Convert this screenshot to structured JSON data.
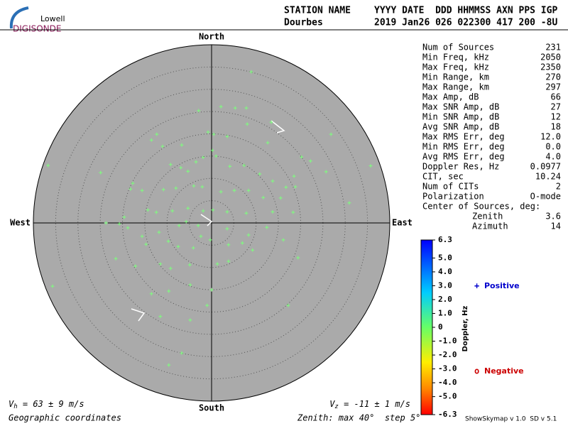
{
  "header": {
    "logo_top": "Lowell",
    "logo_bottom": "DIGISONDE",
    "line1": [
      "STATION NAME",
      "YYYY DATE  DDD HHMMSS AXN PPS IGP"
    ],
    "line2": [
      "Dourbes",
      "2019 Jan26 026 022300 417 200 -8U"
    ]
  },
  "stats": {
    "rows": [
      [
        "Num of Sources",
        "231"
      ],
      [
        "Min Freq, kHz",
        "2050"
      ],
      [
        "Max Freq, kHz",
        "2350"
      ],
      [
        "Min Range, km",
        "270"
      ],
      [
        "Max Range, km",
        "297"
      ],
      [
        "Max Amp, dB",
        "66"
      ],
      [
        "Max SNR Amp, dB",
        "27"
      ],
      [
        "Min SNR Amp, dB",
        "12"
      ],
      [
        "Avg SNR Amp, dB",
        "18"
      ],
      [
        "Max RMS Err, deg",
        "12.0"
      ],
      [
        "Min RMS Err, deg",
        "0.0"
      ],
      [
        "Avg RMS Err, deg",
        "4.0"
      ],
      [
        "Doppler Res, Hz",
        "0.0977"
      ],
      [
        "CIT, sec",
        "10.24"
      ],
      [
        "Num of CITs",
        "2"
      ],
      [
        "Polarization",
        "O-mode"
      ]
    ],
    "center_title": "Center of Sources, deg:",
    "center_rows": [
      [
        "Zenith",
        "3.6"
      ],
      [
        "Azimuth",
        "14"
      ]
    ]
  },
  "chart_data": {
    "type": "scatter",
    "directions": {
      "north": "North",
      "south": "South",
      "east": "East",
      "west": "West"
    },
    "xlim": [
      -40,
      40
    ],
    "ylim": [
      -40,
      40
    ],
    "rings": [
      5,
      10,
      15,
      20,
      25,
      30,
      35
    ],
    "series": [
      {
        "name": "Sources",
        "color": "#7dff7d",
        "x": [
          8.9,
          2.1,
          5.3,
          7.8,
          -2.9,
          13.4,
          26.8,
          0.5,
          3.5,
          8.0,
          -12.3,
          -13.5,
          -0.8,
          -11.0,
          -6.7,
          12.6,
          20.2,
          22.2,
          35.7,
          -36.7,
          -24.9,
          25.7,
          0.2,
          1.0,
          -1.9,
          -3.5,
          -9.2,
          -6.9,
          -5.3,
          4.1,
          7.3,
          10.8,
          13.7,
          18.5,
          16.7,
          18.8,
          -17.7,
          -18.2,
          -15.6,
          -10.8,
          -8.0,
          -4.0,
          -2.1,
          2.1,
          5.1,
          8.3,
          11.6,
          15.5,
          30.9,
          -14.3,
          -12.4,
          -8.8,
          -5.3,
          -1.9,
          0.3,
          3.5,
          7.8,
          13.7,
          18.3,
          -23.7,
          -20.7,
          -18.8,
          -15.6,
          -11.8,
          -7.3,
          -5.7,
          -3.0,
          3.5,
          8.3,
          12.4,
          -9.7,
          -7.5,
          -4.1,
          -0.3,
          3.8,
          6.9,
          9.2,
          16.1,
          -21.5,
          -17.1,
          -11.5,
          -9.2,
          -4.9,
          1.3,
          3.8,
          19.4,
          -35.7,
          -4.8,
          -9.6,
          -13.5,
          0,
          -1.0,
          17.2,
          -11.5,
          -4.8,
          -6.7,
          -9.6,
          -19.6,
          -14.7,
          -2.4
        ],
        "y": [
          33.9,
          26.1,
          25.8,
          25.8,
          25.2,
          22.6,
          19.9,
          19.9,
          19.4,
          22.2,
          19.9,
          18.6,
          20.4,
          17.2,
          17.5,
          18.0,
          14.8,
          13.9,
          12.8,
          12.9,
          11.3,
          11.5,
          16.3,
          15.0,
          14.7,
          13.7,
          13.1,
          12.4,
          11.6,
          12.7,
          12.9,
          11.0,
          9.4,
          10.5,
          8.0,
          8.1,
          8.9,
          7.6,
          7.3,
          7.5,
          7.8,
          8.3,
          8.1,
          7.0,
          7.3,
          7.3,
          5.7,
          5.6,
          4.5,
          2.9,
          2.4,
          2.7,
          3.3,
          2.7,
          2.9,
          2.5,
          2.2,
          2.5,
          2.4,
          0,
          -0.2,
          -1.1,
          -3.0,
          -2.1,
          -0.6,
          0.3,
          -0.6,
          -1.3,
          -2.7,
          -1.0,
          -4.1,
          -5.3,
          -5.6,
          -3.8,
          -4.9,
          -4.5,
          -6.1,
          -3.8,
          -8.0,
          -9.7,
          -9.2,
          -10.2,
          -9.4,
          -9.2,
          -8.6,
          -7.8,
          -14.2,
          -13.9,
          -15.3,
          -15.9,
          -15.0,
          -18.5,
          -18.5,
          -21.0,
          -21.8,
          -29.2,
          -31.9,
          1.3,
          -4.8,
          -3.0
        ]
      }
    ],
    "legend": [
      {
        "symbol": "+",
        "name": "Positive",
        "color": "#0000cc"
      },
      {
        "symbol": "o",
        "name": "Negative",
        "color": "#cc0000"
      }
    ],
    "colorbar": {
      "label": "Doppler, Hz",
      "lim": [
        -6.3,
        6.3
      ],
      "ticks": [
        6.3,
        {
          "value": 5,
          "label": "5.0"
        },
        {
          "value": 4,
          "label": "4.0"
        },
        {
          "value": 3,
          "label": "3.0"
        },
        {
          "value": 2,
          "label": "2.0"
        },
        {
          "value": 1,
          "label": "1.0"
        },
        0,
        {
          "value": -1,
          "label": "-1.0"
        },
        {
          "value": -2,
          "label": "-2.0"
        },
        {
          "value": -3,
          "label": "-3.0"
        },
        {
          "value": -4,
          "label": "-4.0"
        },
        {
          "value": -5,
          "label": "-5.0"
        },
        -6.3
      ]
    }
  },
  "footer": {
    "vh": [
      "V",
      "h",
      " = 63 ± 9 m/s"
    ],
    "vz": [
      "V",
      "z",
      " = -11 ± 1 m/s"
    ],
    "coords": "Geographic coordinates",
    "zenith": "Zenith: max 40°  step 5°",
    "version": "ShowSkymap v 1.0  SD v 5.1"
  }
}
